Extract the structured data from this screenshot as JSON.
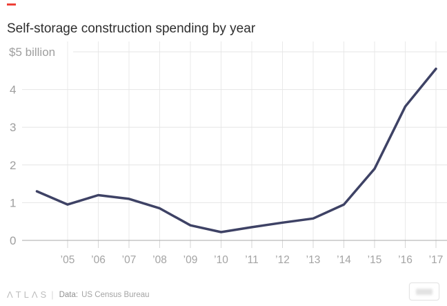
{
  "header": {
    "kicker_color": "#ee4037",
    "title": "Self-storage construction spending by year"
  },
  "chart_data": {
    "type": "line",
    "title": "Self-storage construction spending by year",
    "x": [
      2004,
      2005,
      2006,
      2007,
      2008,
      2009,
      2010,
      2011,
      2012,
      2013,
      2014,
      2015,
      2016,
      2017
    ],
    "values": [
      1.3,
      0.95,
      1.2,
      1.1,
      0.85,
      0.4,
      0.22,
      0.35,
      0.47,
      0.58,
      0.95,
      1.9,
      3.55,
      4.55
    ],
    "x_tick_labels": [
      "’05",
      "’06",
      "’07",
      "’08",
      "’09",
      "’10",
      "’11",
      "’12",
      "’13",
      "’14",
      "’15",
      "’16",
      "’17"
    ],
    "y_ticks": [
      0,
      1,
      2,
      3,
      4
    ],
    "y_top_label": "$5 billion",
    "ylim": [
      0,
      5
    ],
    "xlabel": "",
    "ylabel": "",
    "grid": true,
    "legend": "none",
    "line_color": "#3e4265",
    "gridline_color": "#e9e9e9",
    "baseline_color": "#a9a9a9",
    "axis_label_color": "#a3a3a3"
  },
  "footer": {
    "brand": "ΛTLΛS",
    "separator": "|",
    "data_label": "Data:",
    "source": "US Census Bureau"
  }
}
